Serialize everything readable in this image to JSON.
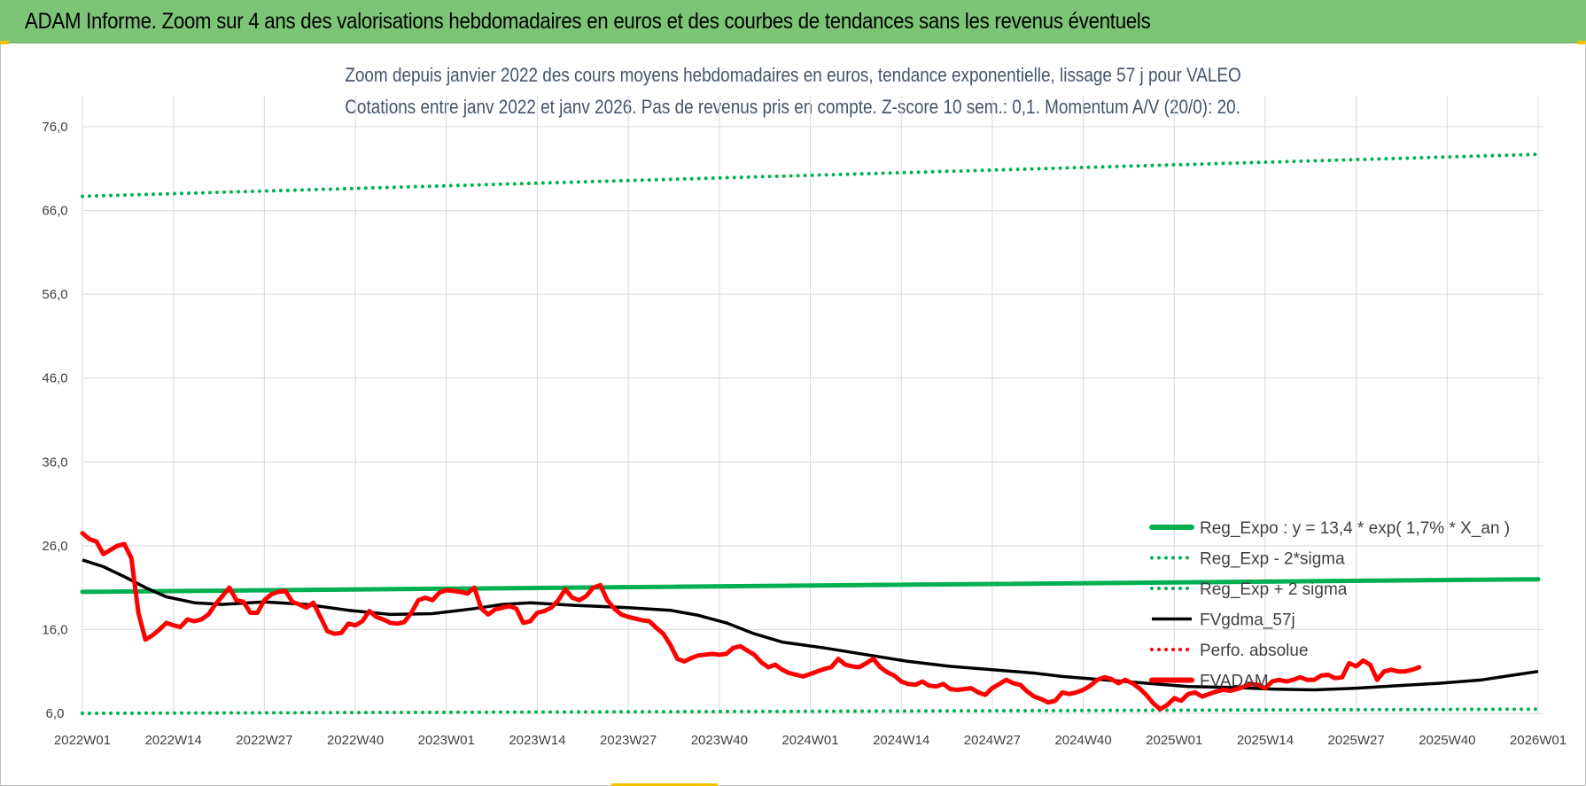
{
  "banner": {
    "title": "ADAM Informe. Zoom sur 4 ans des valorisations hebdomadaires en euros et des courbes de tendances sans les revenus éventuels"
  },
  "colors": {
    "banner": "#7cc576",
    "reg_expo": "#00b050",
    "price": "#ff0000",
    "fvgdma": "#000000",
    "perfo": "#ff0000",
    "grid": "#d9d9d9"
  },
  "chart_data": {
    "type": "line",
    "title": "Zoom depuis janvier 2022 des cours moyens hebdomadaires en euros, tendance exponentielle, lissage 57 j pour VALEO",
    "subtitle": "Cotations entre janv 2022 et janv 2026. Pas de revenus pris en compte. Z-score 10 sem.: 0,1. Momentum A/V (20/0): 20.",
    "xlabel": "",
    "ylabel": "",
    "ylim": [
      6,
      76
    ],
    "yticks": [
      "76,0",
      "66,0",
      "56,0",
      "46,0",
      "36,0",
      "26,0",
      "16,0",
      "6,0"
    ],
    "ytick_values": [
      76,
      66,
      56,
      46,
      36,
      26,
      16,
      6
    ],
    "xticks": [
      "2022W01",
      "2022W14",
      "2022W27",
      "2022W40",
      "2023W01",
      "2023W14",
      "2023W27",
      "2023W40",
      "2024W01",
      "2024W14",
      "2024W27",
      "2024W40",
      "2025W01",
      "2025W14",
      "2025W27",
      "2025W40",
      "2026W01"
    ],
    "x_range_weeks": [
      0,
      208
    ],
    "grid": true,
    "legend_position": "bottom-right inside plot",
    "series": [
      {
        "name": "Reg_Expo : y = 13,4 * exp( 1,7% *  X_an )",
        "style": "solid-thick",
        "color": "#00b050",
        "points": [
          [
            0,
            20.5
          ],
          [
            208,
            22.0
          ]
        ]
      },
      {
        "name": "Reg_Exp - 2*sigma",
        "style": "dotted",
        "color": "#00b050",
        "points": [
          [
            0,
            6.0
          ],
          [
            208,
            6.5
          ]
        ]
      },
      {
        "name": "Reg_Exp + 2 sigma",
        "style": "dotted",
        "color": "#00b050",
        "points": [
          [
            0,
            67.7
          ],
          [
            208,
            72.7
          ]
        ]
      },
      {
        "name": "FVgdma_57j",
        "style": "solid",
        "color": "#000000",
        "points": [
          [
            0,
            24.3
          ],
          [
            3,
            23.5
          ],
          [
            6,
            22.3
          ],
          [
            9,
            21.0
          ],
          [
            12,
            19.9
          ],
          [
            16,
            19.2
          ],
          [
            20,
            19.0
          ],
          [
            26,
            19.3
          ],
          [
            32,
            19.0
          ],
          [
            38,
            18.3
          ],
          [
            44,
            17.8
          ],
          [
            50,
            17.9
          ],
          [
            56,
            18.5
          ],
          [
            60,
            19.0
          ],
          [
            64,
            19.2
          ],
          [
            70,
            18.9
          ],
          [
            78,
            18.6
          ],
          [
            84,
            18.3
          ],
          [
            88,
            17.7
          ],
          [
            92,
            16.8
          ],
          [
            96,
            15.5
          ],
          [
            100,
            14.5
          ],
          [
            106,
            13.8
          ],
          [
            112,
            13.0
          ],
          [
            118,
            12.2
          ],
          [
            124,
            11.6
          ],
          [
            130,
            11.2
          ],
          [
            136,
            10.8
          ],
          [
            140,
            10.4
          ],
          [
            146,
            10.0
          ],
          [
            152,
            9.6
          ],
          [
            158,
            9.2
          ],
          [
            164,
            9.1
          ],
          [
            170,
            8.9
          ],
          [
            176,
            8.8
          ],
          [
            182,
            9.0
          ],
          [
            188,
            9.3
          ],
          [
            194,
            9.6
          ],
          [
            200,
            10.0
          ],
          [
            204,
            10.5
          ],
          [
            208,
            11.0
          ]
        ]
      },
      {
        "name": "Perfo. absolue",
        "style": "dotted",
        "color": "#ff0000",
        "points": []
      },
      {
        "name": "FVADAM",
        "style": "solid-thick",
        "color": "#ff0000",
        "points": [
          [
            0,
            27.5
          ],
          [
            1,
            26.8
          ],
          [
            2,
            26.5
          ],
          [
            3,
            25.0
          ],
          [
            4,
            25.5
          ],
          [
            5,
            26.0
          ],
          [
            6,
            26.2
          ],
          [
            7,
            24.5
          ],
          [
            8,
            18.0
          ],
          [
            9,
            14.8
          ],
          [
            10,
            15.3
          ],
          [
            11,
            16.0
          ],
          [
            12,
            16.8
          ],
          [
            13,
            16.5
          ],
          [
            14,
            16.3
          ],
          [
            15,
            17.2
          ],
          [
            16,
            17.0
          ],
          [
            17,
            17.2
          ],
          [
            18,
            17.8
          ],
          [
            19,
            19.0
          ],
          [
            20,
            20.0
          ],
          [
            21,
            21.0
          ],
          [
            22,
            19.5
          ],
          [
            23,
            19.3
          ],
          [
            24,
            18.0
          ],
          [
            25,
            18.0
          ],
          [
            26,
            19.5
          ],
          [
            27,
            20.2
          ],
          [
            28,
            20.5
          ],
          [
            29,
            20.6
          ],
          [
            30,
            19.3
          ],
          [
            31,
            19.0
          ],
          [
            32,
            18.6
          ],
          [
            33,
            19.2
          ],
          [
            34,
            17.5
          ],
          [
            35,
            15.8
          ],
          [
            36,
            15.5
          ],
          [
            37,
            15.6
          ],
          [
            38,
            16.7
          ],
          [
            39,
            16.5
          ],
          [
            40,
            17.0
          ],
          [
            41,
            18.2
          ],
          [
            42,
            17.5
          ],
          [
            43,
            17.2
          ],
          [
            44,
            16.8
          ],
          [
            45,
            16.7
          ],
          [
            46,
            16.9
          ],
          [
            47,
            18.0
          ],
          [
            48,
            19.5
          ],
          [
            49,
            19.8
          ],
          [
            50,
            19.5
          ],
          [
            51,
            20.4
          ],
          [
            52,
            20.7
          ],
          [
            53,
            20.6
          ],
          [
            54,
            20.5
          ],
          [
            55,
            20.3
          ],
          [
            56,
            21.0
          ],
          [
            57,
            18.5
          ],
          [
            58,
            17.8
          ],
          [
            59,
            18.4
          ],
          [
            60,
            18.6
          ],
          [
            61,
            18.8
          ],
          [
            62,
            18.5
          ],
          [
            63,
            16.8
          ],
          [
            64,
            17.0
          ],
          [
            65,
            18.0
          ],
          [
            66,
            18.2
          ],
          [
            67,
            18.6
          ],
          [
            68,
            19.5
          ],
          [
            69,
            20.8
          ],
          [
            70,
            19.8
          ],
          [
            71,
            19.5
          ],
          [
            72,
            20.0
          ],
          [
            73,
            21.0
          ],
          [
            74,
            21.3
          ],
          [
            75,
            19.5
          ],
          [
            76,
            18.5
          ],
          [
            77,
            17.8
          ],
          [
            78,
            17.5
          ],
          [
            79,
            17.3
          ],
          [
            80,
            17.1
          ],
          [
            81,
            17.0
          ],
          [
            82,
            16.2
          ],
          [
            83,
            15.5
          ],
          [
            84,
            14.2
          ],
          [
            85,
            12.5
          ],
          [
            86,
            12.2
          ],
          [
            87,
            12.6
          ],
          [
            88,
            12.9
          ],
          [
            89,
            13.0
          ],
          [
            90,
            13.1
          ],
          [
            91,
            13.0
          ],
          [
            92,
            13.1
          ],
          [
            93,
            13.8
          ],
          [
            94,
            14.0
          ],
          [
            95,
            13.5
          ],
          [
            96,
            13.0
          ],
          [
            97,
            12.1
          ],
          [
            98,
            11.5
          ],
          [
            99,
            11.8
          ],
          [
            100,
            11.2
          ],
          [
            101,
            10.8
          ],
          [
            102,
            10.6
          ],
          [
            103,
            10.4
          ],
          [
            104,
            10.7
          ],
          [
            105,
            11.0
          ],
          [
            106,
            11.3
          ],
          [
            107,
            11.5
          ],
          [
            108,
            12.5
          ],
          [
            109,
            11.8
          ],
          [
            110,
            11.6
          ],
          [
            111,
            11.5
          ],
          [
            112,
            12.0
          ],
          [
            113,
            12.5
          ],
          [
            114,
            11.5
          ],
          [
            115,
            10.9
          ],
          [
            116,
            10.5
          ],
          [
            117,
            9.8
          ],
          [
            118,
            9.5
          ],
          [
            119,
            9.4
          ],
          [
            120,
            9.8
          ],
          [
            121,
            9.3
          ],
          [
            122,
            9.2
          ],
          [
            123,
            9.5
          ],
          [
            124,
            8.9
          ],
          [
            125,
            8.8
          ],
          [
            126,
            8.9
          ],
          [
            127,
            9.0
          ],
          [
            128,
            8.5
          ],
          [
            129,
            8.2
          ],
          [
            130,
            9.0
          ],
          [
            131,
            9.5
          ],
          [
            132,
            10.0
          ],
          [
            133,
            9.6
          ],
          [
            134,
            9.4
          ],
          [
            135,
            8.6
          ],
          [
            136,
            8.0
          ],
          [
            137,
            7.7
          ],
          [
            138,
            7.3
          ],
          [
            139,
            7.5
          ],
          [
            140,
            8.5
          ],
          [
            141,
            8.3
          ],
          [
            142,
            8.5
          ],
          [
            143,
            8.8
          ],
          [
            144,
            9.3
          ],
          [
            145,
            10.0
          ],
          [
            146,
            10.3
          ],
          [
            147,
            10.1
          ],
          [
            148,
            9.6
          ],
          [
            149,
            10.0
          ],
          [
            150,
            9.6
          ],
          [
            151,
            9.0
          ],
          [
            152,
            8.2
          ],
          [
            153,
            7.2
          ],
          [
            154,
            6.5
          ],
          [
            155,
            7.0
          ],
          [
            156,
            7.8
          ],
          [
            157,
            7.5
          ],
          [
            158,
            8.3
          ],
          [
            159,
            8.5
          ],
          [
            160,
            8.0
          ],
          [
            161,
            8.3
          ],
          [
            162,
            8.6
          ],
          [
            163,
            8.8
          ],
          [
            164,
            8.7
          ],
          [
            165,
            8.9
          ],
          [
            166,
            9.2
          ],
          [
            167,
            9.5
          ],
          [
            168,
            9.4
          ],
          [
            169,
            9.0
          ],
          [
            170,
            9.8
          ],
          [
            171,
            10.0
          ],
          [
            172,
            9.8
          ],
          [
            173,
            10.0
          ],
          [
            174,
            10.3
          ],
          [
            175,
            10.0
          ],
          [
            176,
            10.0
          ],
          [
            177,
            10.5
          ],
          [
            178,
            10.6
          ],
          [
            179,
            10.2
          ],
          [
            180,
            10.3
          ],
          [
            181,
            12.0
          ],
          [
            182,
            11.6
          ],
          [
            183,
            12.3
          ],
          [
            184,
            11.8
          ],
          [
            185,
            10.0
          ],
          [
            186,
            11.0
          ],
          [
            187,
            11.2
          ],
          [
            188,
            11.0
          ],
          [
            189,
            11.0
          ],
          [
            190,
            11.2
          ],
          [
            191,
            11.5
          ]
        ]
      }
    ]
  }
}
